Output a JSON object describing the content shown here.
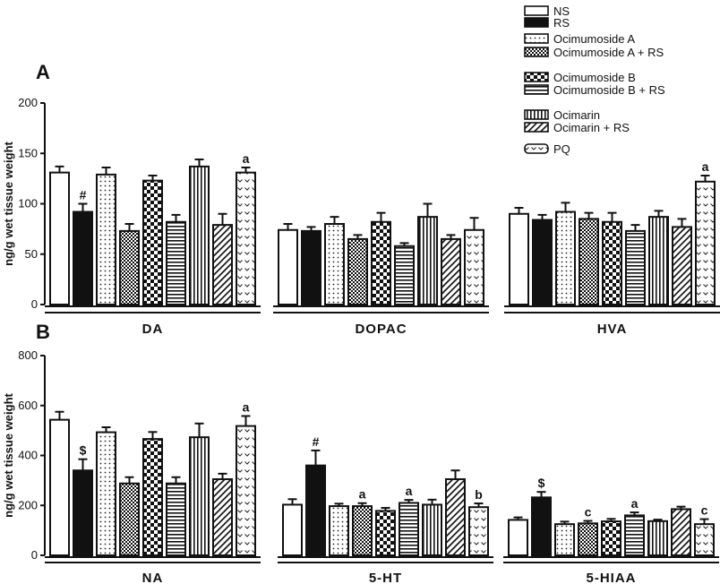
{
  "chart_data": [
    {
      "panel": "A",
      "type": "bar",
      "ylabel": "ng/g wet tissue weight",
      "ylim": [
        0,
        200
      ],
      "yticks": [
        0,
        50,
        100,
        150,
        200
      ],
      "groups": [
        "DA",
        "DOPAC",
        "HVA"
      ],
      "series": [
        {
          "name": "NS",
          "values": [
            131,
            74,
            90
          ],
          "errors": [
            6,
            6,
            6
          ],
          "annotations": [
            "",
            "",
            ""
          ]
        },
        {
          "name": "RS",
          "values": [
            92,
            73,
            84
          ],
          "errors": [
            8,
            4,
            5
          ],
          "annotations": [
            "#",
            "",
            ""
          ]
        },
        {
          "name": "Ocimumoside A",
          "values": [
            129,
            80,
            92
          ],
          "errors": [
            7,
            7,
            9
          ],
          "annotations": [
            "",
            "",
            ""
          ]
        },
        {
          "name": "Ocimumoside A + RS",
          "values": [
            73,
            65,
            85
          ],
          "errors": [
            7,
            4,
            6
          ],
          "annotations": [
            "",
            "",
            ""
          ]
        },
        {
          "name": "Ocimumoside B",
          "values": [
            123,
            82,
            82
          ],
          "errors": [
            5,
            9,
            9
          ],
          "annotations": [
            "",
            "",
            ""
          ]
        },
        {
          "name": "Ocimumoside B + RS",
          "values": [
            82,
            58,
            73
          ],
          "errors": [
            7,
            3,
            6
          ],
          "annotations": [
            "",
            "",
            ""
          ]
        },
        {
          "name": "Ocimarin",
          "values": [
            137,
            87,
            87
          ],
          "errors": [
            7,
            13,
            6
          ],
          "annotations": [
            "",
            "",
            ""
          ]
        },
        {
          "name": "Ocimarin + RS",
          "values": [
            79,
            65,
            77
          ],
          "errors": [
            11,
            4,
            8
          ],
          "annotations": [
            "",
            "",
            ""
          ]
        },
        {
          "name": "PQ",
          "values": [
            131,
            74,
            122
          ],
          "errors": [
            5,
            12,
            6
          ],
          "annotations": [
            "a",
            "",
            "a"
          ]
        }
      ]
    },
    {
      "panel": "B",
      "type": "bar",
      "ylabel": "ng/g wet tissue weight",
      "ylim": [
        0,
        800
      ],
      "yticks": [
        0,
        200,
        400,
        600,
        800
      ],
      "groups": [
        "NA",
        "5-HT",
        "5-HIAA"
      ],
      "series": [
        {
          "name": "NS",
          "values": [
            543,
            203,
            142
          ],
          "errors": [
            32,
            22,
            10
          ],
          "annotations": [
            "",
            "",
            ""
          ]
        },
        {
          "name": "RS",
          "values": [
            340,
            360,
            232
          ],
          "errors": [
            45,
            60,
            22
          ],
          "annotations": [
            "$",
            "#",
            "$"
          ]
        },
        {
          "name": "Ocimumoside A",
          "values": [
            493,
            197,
            125
          ],
          "errors": [
            20,
            10,
            10
          ],
          "annotations": [
            "",
            "",
            ""
          ]
        },
        {
          "name": "Ocimumoside A + RS",
          "values": [
            288,
            197,
            128
          ],
          "errors": [
            25,
            12,
            10
          ],
          "annotations": [
            "",
            "a",
            "c"
          ]
        },
        {
          "name": "Ocimumoside B",
          "values": [
            466,
            178,
            136
          ],
          "errors": [
            28,
            12,
            10
          ],
          "annotations": [
            "",
            "",
            ""
          ]
        },
        {
          "name": "Ocimumoside B + RS",
          "values": [
            288,
            210,
            160
          ],
          "errors": [
            25,
            12,
            12
          ],
          "annotations": [
            "",
            "a",
            "a"
          ]
        },
        {
          "name": "Ocimarin",
          "values": [
            473,
            203,
            137
          ],
          "errors": [
            55,
            20,
            6
          ],
          "annotations": [
            "",
            "",
            ""
          ]
        },
        {
          "name": "Ocimarin + RS",
          "values": [
            305,
            305,
            185
          ],
          "errors": [
            22,
            35,
            10
          ],
          "annotations": [
            "",
            "",
            ""
          ]
        },
        {
          "name": "PQ",
          "values": [
            518,
            193,
            125
          ],
          "errors": [
            40,
            15,
            20
          ],
          "annotations": [
            "a",
            "b",
            "c"
          ]
        }
      ]
    }
  ],
  "legend": {
    "placement": "top-right",
    "items": [
      "NS",
      "RS",
      "Ocimumoside A",
      "Ocimumoside A + RS",
      "Ocimumoside B",
      "Ocimumoside B + RS",
      "Ocimarin",
      "Ocimarin + RS",
      "PQ"
    ]
  },
  "patterns": [
    "empty",
    "solid-black",
    "dots",
    "checker-dense",
    "checker",
    "horizontal-lines",
    "vertical-lines",
    "diagonal",
    "chevrons"
  ]
}
